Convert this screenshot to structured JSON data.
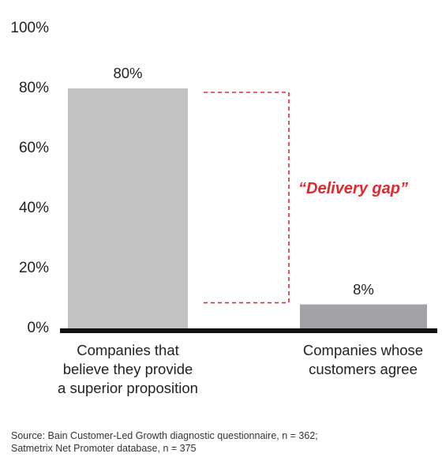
{
  "chart_data": {
    "type": "bar",
    "categories": [
      "Companies that\nbelieve they provide\na superior proposition",
      "Companies whose\ncustomers agree"
    ],
    "values": [
      80,
      8
    ],
    "value_labels": [
      "80%",
      "8%"
    ],
    "ylim": [
      0,
      100
    ],
    "yticks": [
      "0%",
      "20%",
      "40%",
      "60%",
      "80%",
      "100%"
    ],
    "ytick_values": [
      0,
      20,
      40,
      60,
      80,
      100
    ],
    "bar_colors": [
      "#c2c2c2",
      "#a3a2a7"
    ],
    "annotation": {
      "text": "“Delivery gap”",
      "color": "#e0282d",
      "style": "dashed bracket from first bar top to second bar top"
    },
    "grid": false,
    "legend": "none"
  },
  "footer": {
    "source": "Source: Bain Customer-Led Growth diagnostic questionnaire, n = 362;\nSatmetrix Net Promoter database, n = 375"
  }
}
